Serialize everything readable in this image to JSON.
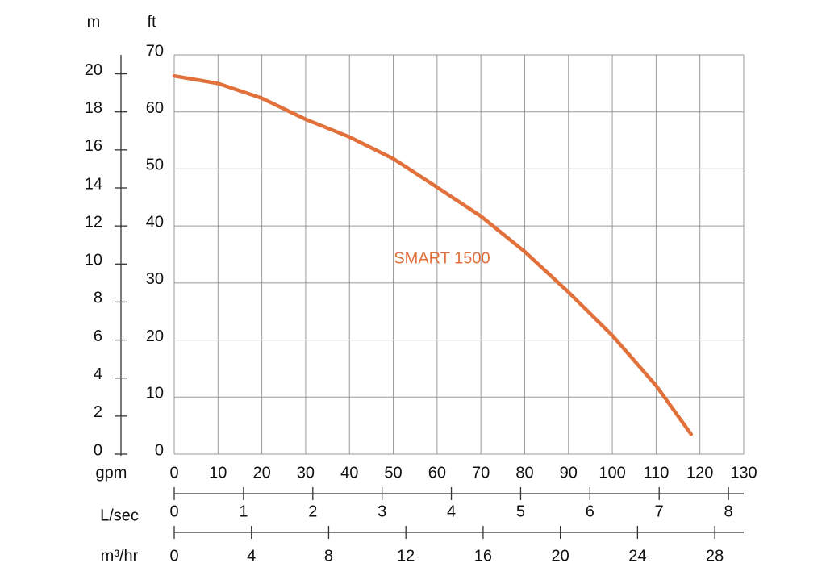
{
  "chart_data": {
    "type": "line",
    "y_title": "ft",
    "y2_title": "m",
    "x_title": "gpm",
    "x2_title": "L/sec",
    "x3_title": "m³/hr",
    "x": [
      0,
      10,
      20,
      30,
      40,
      50,
      60,
      70,
      80,
      90,
      100,
      110,
      118
    ],
    "series": [
      {
        "name": "SMART 1500",
        "color": "#e2703a",
        "values": [
          66.3,
          65,
          62.4,
          58.7,
          55.6,
          51.8,
          46.8,
          41.7,
          35.5,
          28.4,
          20.8,
          12,
          3.5
        ]
      }
    ],
    "xlim": [
      0,
      130
    ],
    "xticks": [
      0,
      10,
      20,
      30,
      40,
      50,
      60,
      70,
      80,
      90,
      100,
      110,
      120,
      130
    ],
    "ylim": [
      0,
      70
    ],
    "yticks": [
      0,
      10,
      20,
      30,
      40,
      50,
      60,
      70
    ],
    "y2lim": [
      0,
      21
    ],
    "y2ticks": [
      0,
      2,
      4,
      6,
      8,
      10,
      12,
      14,
      16,
      18,
      20
    ],
    "x2lim": [
      0,
      8.22
    ],
    "x2ticks": [
      0,
      1,
      2,
      3,
      4,
      5,
      6,
      7,
      8
    ],
    "x3lim": [
      0,
      29.5
    ],
    "x3ticks": [
      0,
      4,
      8,
      12,
      16,
      20,
      24,
      28
    ],
    "grid": true
  }
}
